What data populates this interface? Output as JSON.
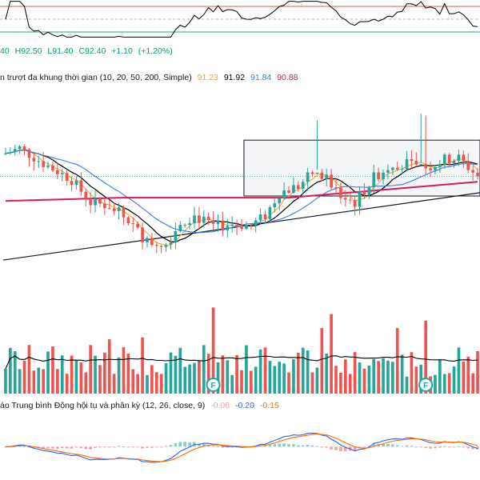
{
  "ohlc_legend": {
    "open": "40",
    "high": "H92.50",
    "low": "L91.40",
    "close": "C92.40",
    "change": "+1.10",
    "change_pct": "(+1.20%)"
  },
  "ma_legend": {
    "title": "n trượt đa khung thời gian (10, 20, 50, 200, Simple)",
    "values": [
      "91.23",
      "91.92",
      "91.84",
      "90.88"
    ],
    "colors": [
      "#f7a21b",
      "#000000",
      "#3a7de0",
      "#d81b60"
    ]
  },
  "macd_legend": {
    "title": "áo Trung bình Động hội tụ và phân kỳ (12, 26, close, 9)",
    "values": [
      "-0.06",
      "-0.20",
      "-0.15"
    ],
    "colors": [
      "#f3a0a8",
      "#2962ff",
      "#ff6d00"
    ]
  },
  "events": {
    "label": "F",
    "candle_index": [
      44,
      89
    ]
  },
  "colors": {
    "up": "#26a69a",
    "down": "#ef5350",
    "rsi": "#000000",
    "rsi_upper": "#ef5350",
    "rsi_lower": "#26a69a",
    "volume_ma": "#000000",
    "macd_line": "#2962ff",
    "signal_line": "#ff6d00"
  },
  "chart_data": {
    "type": "candlestick",
    "y_range": [
      88.0,
      93.6
    ],
    "rsi_range": [
      20,
      80
    ],
    "volume_range": [
      0,
      100
    ],
    "macd_range": [
      -0.9,
      1.0
    ],
    "candles": [],
    "trendline_points": [
      [
        0,
        88.85
      ],
      [
        100,
        90.9
      ]
    ],
    "range_box": {
      "start": 51,
      "end": 100,
      "high": 92.5,
      "low": 90.8
    }
  }
}
